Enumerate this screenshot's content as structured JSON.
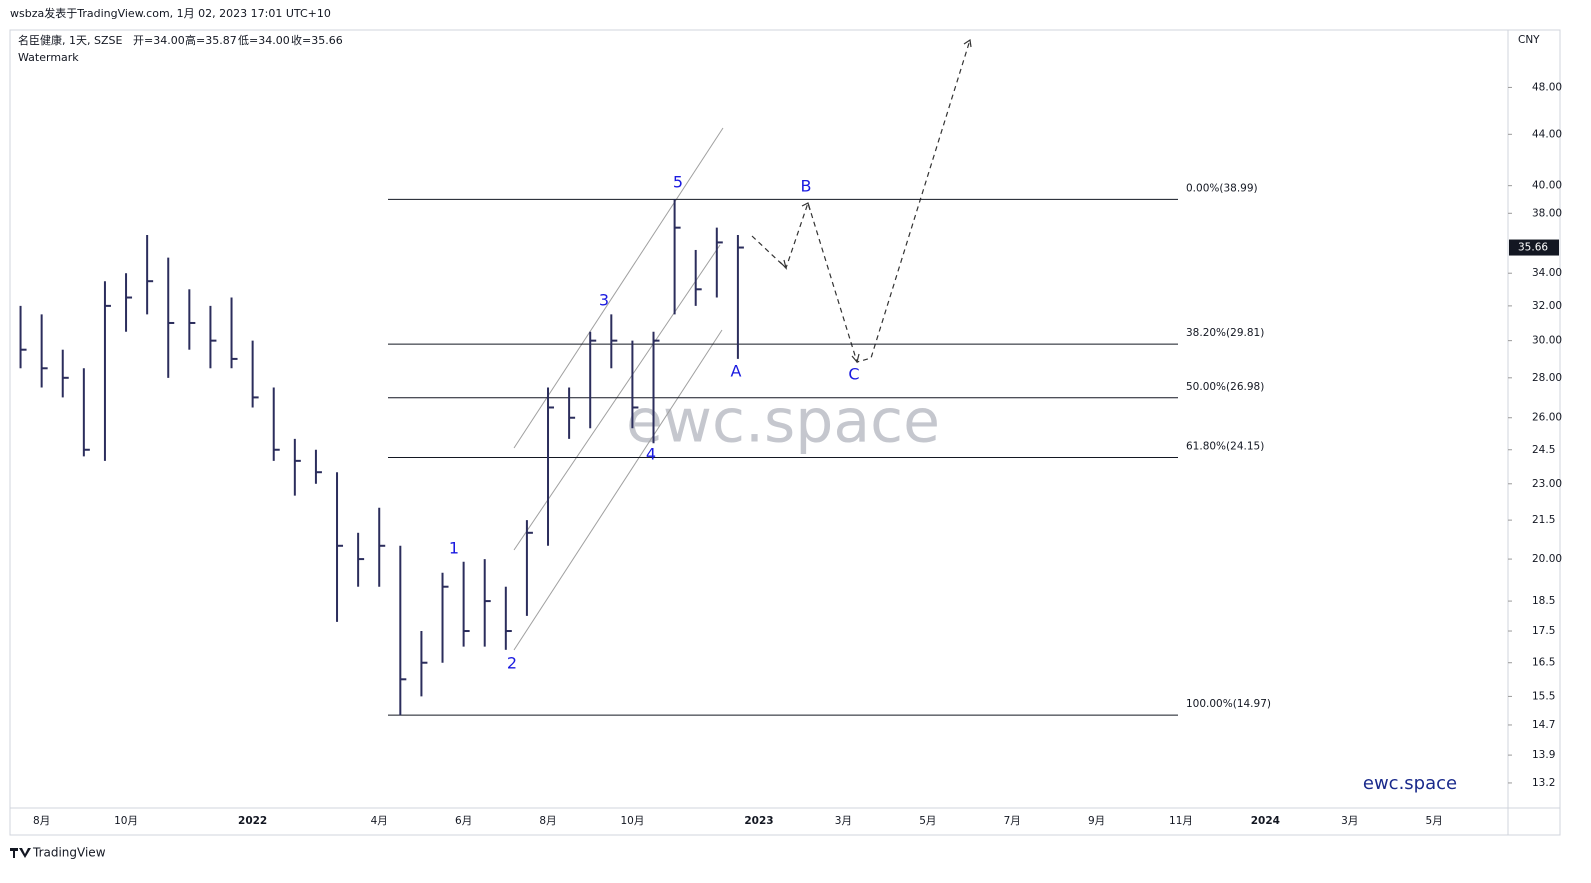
{
  "header": {
    "byline": "wsbza发表于TradingView.com, 1月 02, 2023 17:01 UTC+10",
    "symbol": "名臣健康, 1天, SZSE",
    "ohlc": [
      "开=34.00",
      "高=35.87",
      "低=34.00",
      "收=35.66"
    ],
    "note": "Watermark"
  },
  "chart_data": {
    "type": "hlc",
    "color": "#2b2d5c",
    "log_scale": true,
    "currency": "CNY",
    "last_price": 35.66,
    "categories": [
      null,
      "8月",
      null,
      null,
      null,
      "10月",
      null,
      null,
      null,
      null,
      null,
      "2022",
      null,
      null,
      null,
      null,
      null,
      "4月",
      null,
      null,
      null,
      "6月",
      null,
      null,
      null,
      "8月",
      null,
      null,
      null,
      "10月",
      null,
      null,
      null,
      null,
      null,
      "2023",
      null,
      null,
      null,
      "3月",
      null,
      null,
      null,
      "5月",
      null,
      null,
      null,
      "7月",
      null,
      null,
      null,
      "9月",
      null,
      null,
      null,
      "11月",
      null,
      null,
      null,
      "2024",
      null,
      null,
      null,
      "3月",
      null,
      null,
      null,
      "5月",
      null,
      null,
      null
    ],
    "high": [
      32,
      31.5,
      29.5,
      28.5,
      33.5,
      34,
      36.5,
      35,
      33,
      32,
      32.5,
      30,
      27.5,
      25,
      24.5,
      23.5,
      21,
      22,
      20.5,
      17.5,
      19.5,
      19.9,
      20,
      19,
      21.5,
      27.5,
      27.5,
      30.5,
      31.5,
      30,
      30.5,
      39,
      35.5,
      37,
      36.5,
      null,
      null,
      null,
      null,
      null,
      null,
      null,
      null,
      null,
      null,
      null,
      null,
      null,
      null,
      null,
      null,
      null,
      null,
      null,
      null,
      null,
      null,
      null,
      null,
      null,
      null,
      null,
      null,
      null,
      null,
      null,
      null,
      null,
      null,
      null,
      null
    ],
    "low": [
      28.5,
      27.5,
      27,
      24.2,
      24,
      30.5,
      31.5,
      28,
      29.5,
      28.5,
      28.5,
      26.5,
      24,
      22.5,
      23,
      17.8,
      19,
      19,
      14.97,
      15.5,
      16.5,
      17,
      17,
      16.9,
      18,
      20.5,
      25,
      25.5,
      28.5,
      25.5,
      24.8,
      31.5,
      32,
      32.5,
      29,
      null,
      null,
      null,
      null,
      null,
      null,
      null,
      null,
      null,
      null,
      null,
      null,
      null,
      null,
      null,
      null,
      null,
      null,
      null,
      null,
      null,
      null,
      null,
      null,
      null,
      null,
      null,
      null,
      null,
      null,
      null,
      null,
      null,
      null,
      null,
      null
    ],
    "close": [
      29.5,
      28.5,
      28,
      24.5,
      32,
      32.5,
      33.5,
      31,
      31,
      30,
      29,
      27,
      24.5,
      24,
      23.5,
      20.5,
      20,
      20.5,
      16,
      16.5,
      19,
      17.5,
      18.5,
      17.5,
      21,
      26.5,
      26,
      30,
      30,
      26.5,
      30,
      37,
      33,
      36,
      35.66,
      null,
      null,
      null,
      null,
      null,
      null,
      null,
      null,
      null,
      null,
      null,
      null,
      null,
      null,
      null,
      null,
      null,
      null,
      null,
      null,
      null,
      null,
      null,
      null,
      null,
      null,
      null,
      null,
      null,
      null,
      null,
      null,
      null,
      null,
      null,
      null
    ],
    "ylim": [
      12.6,
      53.4
    ],
    "yticks": [
      {
        "value": 48,
        "label": "48.00"
      },
      {
        "value": 44,
        "label": "44.00"
      },
      {
        "value": 40,
        "label": "40.00"
      },
      {
        "value": 38,
        "label": "38.00"
      },
      {
        "value": 34,
        "label": "34.00"
      },
      {
        "value": 32,
        "label": "32.00"
      },
      {
        "value": 30,
        "label": "30.00"
      },
      {
        "value": 28,
        "label": "28.00"
      },
      {
        "value": 26,
        "label": "26.00"
      },
      24.5,
      {
        "value": 23,
        "label": "23.00"
      },
      21.5,
      {
        "value": 20,
        "label": "20.00"
      },
      18.5,
      17.5,
      16.5,
      15.5,
      14.7,
      13.9,
      13.2
    ],
    "fib_levels": [
      {
        "value": 38.99,
        "label": "0.00%(38.99)"
      },
      {
        "value": 29.81,
        "label": "38.20%(29.81)"
      },
      {
        "value": 26.98,
        "label": "50.00%(26.98)"
      },
      {
        "value": 24.15,
        "label": "61.80%(24.15)"
      },
      {
        "value": 14.97,
        "label": "100.00%(14.97)"
      }
    ],
    "wave_labels": [
      "1",
      "2",
      "3",
      "4",
      "5",
      "A",
      "B",
      "C"
    ],
    "wave_color": "#1a1ae0",
    "watermark": "ewc.space",
    "brand": "ewc.space"
  },
  "footer": {
    "logo": "TradingView"
  }
}
